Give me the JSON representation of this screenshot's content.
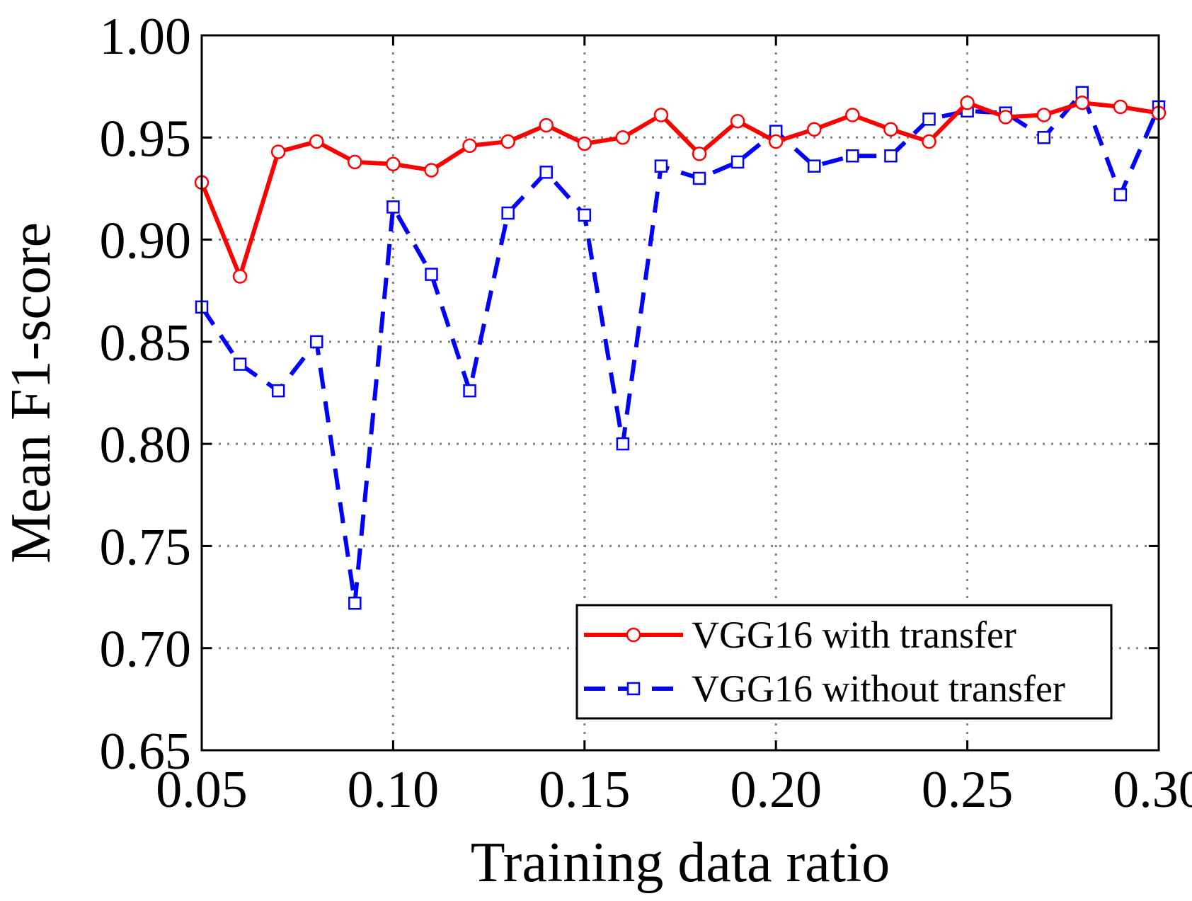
{
  "chart_data": {
    "type": "line",
    "title": "",
    "xlabel": "Training data ratio",
    "ylabel": "Mean F1-score",
    "xlim": [
      0.05,
      0.3
    ],
    "ylim": [
      0.65,
      1.0
    ],
    "grid": true,
    "legend_position": "bottom-right",
    "x_ticks": [
      "0.05",
      "0.10",
      "0.15",
      "0.20",
      "0.25",
      "0.30"
    ],
    "y_ticks": [
      "0.65",
      "0.70",
      "0.75",
      "0.80",
      "0.85",
      "0.90",
      "0.95",
      "1.00"
    ],
    "x": [
      0.05,
      0.06,
      0.07,
      0.08,
      0.09,
      0.1,
      0.11,
      0.12,
      0.13,
      0.14,
      0.15,
      0.16,
      0.17,
      0.18,
      0.19,
      0.2,
      0.21,
      0.22,
      0.23,
      0.24,
      0.25,
      0.26,
      0.27,
      0.28,
      0.29,
      0.3
    ],
    "series": [
      {
        "name": "VGG16 with transfer",
        "color": "#ff0000",
        "marker": "circle",
        "line_style": "solid",
        "values": [
          0.928,
          0.882,
          0.943,
          0.948,
          0.938,
          0.937,
          0.934,
          0.946,
          0.948,
          0.956,
          0.947,
          0.95,
          0.961,
          0.942,
          0.958,
          0.948,
          0.954,
          0.961,
          0.954,
          0.948,
          0.967,
          0.96,
          0.961,
          0.967,
          0.965,
          0.962
        ]
      },
      {
        "name": "VGG16 without transfer",
        "color": "#0000ff",
        "marker": "square",
        "line_style": "dashed",
        "values": [
          0.867,
          0.839,
          0.826,
          0.85,
          0.722,
          0.916,
          0.883,
          0.826,
          0.913,
          0.933,
          0.912,
          0.8,
          0.936,
          0.93,
          0.938,
          0.953,
          0.936,
          0.941,
          0.941,
          0.959,
          0.963,
          0.962,
          0.95,
          0.972,
          0.922,
          0.965
        ]
      }
    ]
  }
}
